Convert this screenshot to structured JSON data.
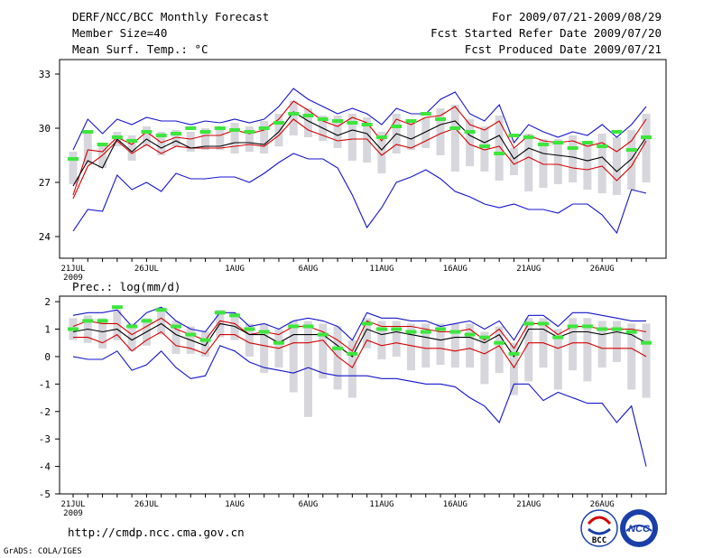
{
  "header": {
    "title": "DERF/NCC/BCC Monthly Forecast",
    "member_size": "Member Size=40",
    "variable_1": "Mean Surf. Temp.: °C",
    "period": "For 2009/07/21-2009/08/29",
    "started": "Fcst Started Refer Date 2009/07/20",
    "produced": "Fcst Produced Date 2009/07/21"
  },
  "footer": {
    "url": "http://cmdp.ncc.cma.gov.cn",
    "credit": "GrADS: COLA/IGES",
    "logo_bcc": "BCC",
    "logo_ncc": "NCC"
  },
  "colors": {
    "max": "#1414cc",
    "min": "#1414cc",
    "upper": "#d40000",
    "lower": "#d40000",
    "mean": "#000000",
    "bar": "#d6d6dc",
    "marker": "#3ce63c"
  },
  "chart_data": [
    {
      "type": "line",
      "title": "Mean Surf. Temp.: °C",
      "ylim": [
        22.8,
        33.8
      ],
      "yticks": [
        24,
        27,
        30,
        33
      ],
      "xtick_labels": [
        "21JUL",
        "26JUL",
        "1AUG",
        "6AUG",
        "11AUG",
        "16AUG",
        "21AUG",
        "26AUG"
      ],
      "xtick_days": [
        0,
        5,
        11,
        16,
        21,
        26,
        31,
        36
      ],
      "x_year_label": "2009",
      "days": 40,
      "series": {
        "max": [
          28.8,
          30.5,
          29.7,
          30.5,
          30.2,
          30.6,
          30.4,
          30.4,
          30.2,
          30.4,
          30.3,
          30.5,
          30.3,
          30.5,
          31.2,
          32.2,
          31.6,
          31.2,
          30.8,
          31.1,
          30.8,
          30.2,
          31.1,
          30.8,
          30.8,
          31.6,
          32.0,
          30.8,
          30.4,
          31.3,
          29.2,
          30.2,
          29.8,
          29.5,
          29.8,
          29.6,
          30.2,
          29.5,
          30.2,
          31.2
        ],
        "upper": [
          26.3,
          28.8,
          28.7,
          29.5,
          29.1,
          29.8,
          29.2,
          29.5,
          29.4,
          29.6,
          29.6,
          29.9,
          29.7,
          29.9,
          30.5,
          31.5,
          31.0,
          30.4,
          30.1,
          30.6,
          30.3,
          29.3,
          30.5,
          30.2,
          30.6,
          30.7,
          31.2,
          30.2,
          29.9,
          30.4,
          28.9,
          29.6,
          29.3,
          29.2,
          29.3,
          29.0,
          29.2,
          28.7,
          29.3,
          30.5
        ],
        "mean": [
          26.8,
          28.2,
          27.8,
          29.4,
          28.7,
          29.4,
          28.9,
          29.3,
          28.9,
          29.0,
          29.0,
          29.2,
          29.2,
          29.1,
          29.8,
          30.9,
          30.4,
          30.0,
          29.6,
          29.9,
          29.7,
          28.8,
          29.7,
          29.4,
          29.8,
          30.2,
          30.4,
          29.6,
          29.2,
          29.6,
          28.3,
          28.9,
          28.6,
          28.5,
          28.4,
          28.2,
          28.4,
          27.6,
          28.3,
          29.5
        ],
        "lower": [
          26.1,
          27.9,
          28.5,
          29.3,
          28.6,
          29.1,
          28.6,
          29.0,
          28.9,
          28.9,
          28.9,
          29.0,
          29.1,
          29.0,
          29.6,
          30.5,
          29.9,
          29.6,
          29.3,
          29.4,
          29.4,
          28.5,
          29.1,
          28.9,
          29.3,
          29.7,
          30.0,
          29.1,
          28.8,
          29.0,
          28.0,
          28.4,
          28.0,
          28.0,
          27.8,
          27.7,
          27.9,
          27.1,
          27.9,
          29.3
        ],
        "min": [
          24.3,
          25.5,
          25.4,
          27.4,
          26.6,
          27.0,
          26.5,
          27.5,
          27.2,
          27.2,
          27.3,
          27.3,
          27.0,
          27.5,
          28.1,
          28.6,
          28.3,
          28.3,
          27.8,
          26.3,
          24.5,
          25.6,
          27.0,
          27.3,
          27.7,
          27.2,
          26.5,
          26.2,
          25.8,
          25.6,
          25.8,
          25.5,
          25.5,
          25.3,
          25.8,
          25.8,
          25.2,
          24.2,
          26.6,
          26.4
        ],
        "marker": [
          28.3,
          29.8,
          29.1,
          29.5,
          29.3,
          29.8,
          29.6,
          29.7,
          30.0,
          29.8,
          30.0,
          29.9,
          29.8,
          30.0,
          30.3,
          30.8,
          30.7,
          30.5,
          30.4,
          30.3,
          30.2,
          29.5,
          30.1,
          30.4,
          30.8,
          30.5,
          30.0,
          29.8,
          29.0,
          28.6,
          29.6,
          29.5,
          29.1,
          29.2,
          28.9,
          29.2,
          29.0,
          29.8,
          28.8,
          29.5
        ],
        "bar_low": [
          26.9,
          28.0,
          27.8,
          29.0,
          28.2,
          29.0,
          28.5,
          29.0,
          28.7,
          28.8,
          28.8,
          28.6,
          28.7,
          28.6,
          29.0,
          29.6,
          29.5,
          29.3,
          28.9,
          28.2,
          28.1,
          27.5,
          28.6,
          28.8,
          28.9,
          28.5,
          27.6,
          27.9,
          27.6,
          27.1,
          27.4,
          26.5,
          26.7,
          26.9,
          27.0,
          26.6,
          26.4,
          26.3,
          26.6,
          27.0
        ],
        "bar_high": [
          28.7,
          29.7,
          29.1,
          29.8,
          29.6,
          30.1,
          29.8,
          29.9,
          29.8,
          30.0,
          30.1,
          30.3,
          30.1,
          30.4,
          30.8,
          31.5,
          31.1,
          30.7,
          30.7,
          30.8,
          30.6,
          29.8,
          30.8,
          30.5,
          30.6,
          31.1,
          31.3,
          30.5,
          30.1,
          30.7,
          28.9,
          29.7,
          29.4,
          29.4,
          29.6,
          29.3,
          29.7,
          29.5,
          29.9,
          30.8
        ]
      }
    },
    {
      "type": "line",
      "title": "Prec.: log(mm/d)",
      "ylim": [
        -5,
        2.2
      ],
      "yticks": [
        2,
        1,
        0,
        -1,
        -2,
        -3,
        -4,
        -5
      ],
      "xtick_labels": [
        "21JUL",
        "26JUL",
        "1AUG",
        "6AUG",
        "11AUG",
        "16AUG",
        "21AUG",
        "26AUG"
      ],
      "xtick_days": [
        0,
        5,
        11,
        16,
        21,
        26,
        31,
        36
      ],
      "x_year_label": "2009",
      "days": 40,
      "series": {
        "max": [
          1.5,
          1.6,
          1.6,
          1.7,
          1.1,
          1.6,
          1.8,
          1.3,
          1.0,
          0.9,
          1.6,
          1.6,
          1.1,
          1.2,
          1.0,
          1.3,
          1.4,
          1.3,
          1.1,
          0.6,
          1.6,
          1.4,
          1.4,
          1.3,
          1.3,
          1.1,
          1.2,
          1.3,
          1.0,
          1.3,
          0.6,
          1.5,
          1.5,
          1.1,
          1.6,
          1.6,
          1.5,
          1.4,
          1.3,
          1.3
        ],
        "upper": [
          1.1,
          1.3,
          1.2,
          1.2,
          0.8,
          1.1,
          1.4,
          1.0,
          0.8,
          0.6,
          1.3,
          1.2,
          0.8,
          0.9,
          0.8,
          1.1,
          1.1,
          0.9,
          0.6,
          0.2,
          1.3,
          1.1,
          1.1,
          1.1,
          1.0,
          0.9,
          0.9,
          1.0,
          0.6,
          1.0,
          0.3,
          1.2,
          1.2,
          0.8,
          1.1,
          1.1,
          1.0,
          1.0,
          1.0,
          0.9
        ],
        "mean": [
          0.9,
          1.0,
          0.9,
          1.0,
          0.6,
          0.9,
          1.2,
          0.8,
          0.6,
          0.4,
          1.2,
          1.1,
          0.8,
          0.8,
          0.5,
          0.8,
          0.8,
          0.8,
          0.4,
          0.0,
          1.0,
          0.8,
          0.9,
          0.8,
          0.7,
          0.6,
          0.7,
          0.7,
          0.5,
          0.8,
          0.0,
          1.0,
          1.0,
          0.7,
          0.9,
          0.9,
          0.8,
          0.9,
          0.8,
          0.5
        ],
        "lower": [
          0.7,
          0.7,
          0.5,
          0.8,
          0.2,
          0.6,
          0.9,
          0.4,
          0.3,
          0.1,
          0.8,
          0.8,
          0.5,
          0.4,
          0.3,
          0.5,
          0.5,
          0.6,
          0.0,
          -0.4,
          0.6,
          0.4,
          0.5,
          0.4,
          0.3,
          0.3,
          0.2,
          0.3,
          0.1,
          0.4,
          -0.4,
          0.5,
          0.5,
          0.3,
          0.5,
          0.5,
          0.3,
          0.3,
          0.3,
          0.0
        ],
        "min": [
          0.0,
          -0.1,
          -0.1,
          0.2,
          -0.5,
          -0.3,
          0.2,
          -0.4,
          -0.8,
          -0.7,
          0.4,
          0.2,
          -0.2,
          -0.4,
          -0.5,
          -0.6,
          -0.4,
          -0.6,
          -0.7,
          -0.7,
          -0.7,
          -0.8,
          -0.8,
          -0.9,
          -1.0,
          -1.0,
          -1.1,
          -1.5,
          -1.8,
          -2.4,
          -1.0,
          -1.0,
          -1.6,
          -1.3,
          -1.5,
          -1.7,
          -1.7,
          -2.4,
          -1.8,
          -4.0
        ],
        "marker": [
          1.0,
          1.3,
          1.3,
          1.8,
          1.1,
          1.3,
          1.7,
          1.1,
          0.8,
          0.6,
          1.6,
          1.5,
          1.0,
          0.9,
          0.5,
          1.1,
          1.1,
          0.8,
          0.3,
          0.1,
          1.2,
          1.0,
          1.0,
          0.9,
          0.9,
          1.0,
          0.9,
          0.8,
          0.7,
          0.5,
          0.1,
          1.2,
          1.2,
          0.7,
          1.1,
          1.1,
          1.0,
          1.0,
          0.9,
          0.5
        ],
        "bar_low": [
          0.6,
          0.5,
          0.3,
          0.6,
          0.2,
          0.4,
          0.8,
          0.1,
          0.1,
          0.0,
          0.7,
          0.6,
          0.0,
          -0.6,
          -0.4,
          -1.3,
          -2.2,
          -0.8,
          -1.2,
          -1.5,
          0.3,
          -0.1,
          0.0,
          -0.5,
          -0.4,
          -0.3,
          -0.4,
          -0.4,
          -1.0,
          -0.6,
          -1.4,
          -0.9,
          -0.4,
          -1.2,
          -0.5,
          -0.9,
          -0.4,
          -0.2,
          -1.2,
          -1.5
        ],
        "bar_high": [
          1.4,
          1.5,
          1.4,
          1.7,
          1.2,
          1.4,
          1.8,
          1.3,
          1.1,
          0.9,
          1.7,
          1.6,
          1.2,
          1.2,
          1.0,
          1.3,
          1.3,
          1.2,
          1.1,
          0.6,
          1.4,
          1.3,
          1.3,
          1.2,
          1.2,
          1.2,
          1.2,
          1.2,
          0.9,
          1.1,
          0.5,
          1.4,
          1.4,
          1.0,
          1.4,
          1.4,
          1.3,
          1.3,
          1.2,
          1.2
        ]
      }
    }
  ]
}
